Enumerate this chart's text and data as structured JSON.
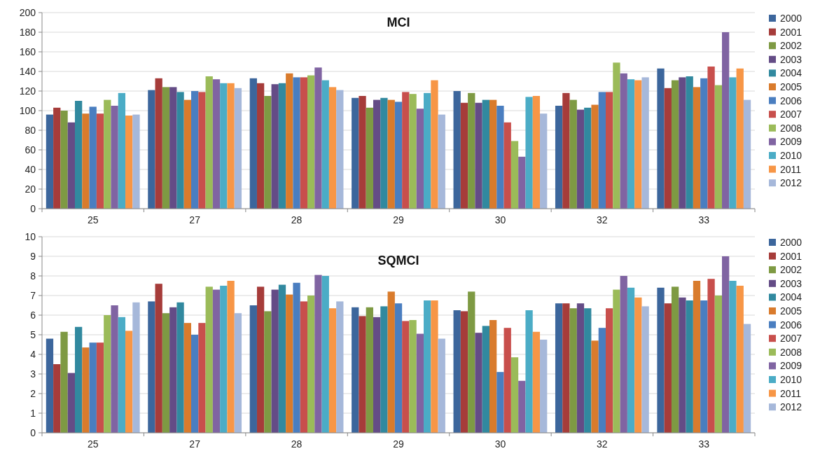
{
  "chart_data": [
    {
      "type": "bar",
      "title": "MCI",
      "categories": [
        "25",
        "27",
        "28",
        "29",
        "30",
        "32",
        "33"
      ],
      "ylim": [
        0,
        200
      ],
      "yticks": [
        0,
        20,
        40,
        60,
        80,
        100,
        120,
        140,
        160,
        180,
        200
      ],
      "grid": "y",
      "legend": "right",
      "series": [
        {
          "name": "2000",
          "color": "#3c669c",
          "values": [
            96,
            121,
            133,
            113,
            120,
            105,
            143
          ]
        },
        {
          "name": "2001",
          "color": "#a63c3a",
          "values": [
            103,
            133,
            128,
            115,
            108,
            118,
            123
          ]
        },
        {
          "name": "2002",
          "color": "#7e9a43",
          "values": [
            100,
            124,
            115,
            103,
            118,
            111,
            131
          ]
        },
        {
          "name": "2003",
          "color": "#644c86",
          "values": [
            88,
            124,
            127,
            111,
            108,
            101,
            134
          ]
        },
        {
          "name": "2004",
          "color": "#31899f",
          "values": [
            110,
            119,
            128,
            113,
            111,
            103,
            135
          ]
        },
        {
          "name": "2005",
          "color": "#d97b2c",
          "values": [
            97,
            111,
            138,
            111,
            111,
            106,
            124
          ]
        },
        {
          "name": "2006",
          "color": "#4a7ec0",
          "values": [
            104,
            120,
            134,
            109,
            105,
            119,
            133
          ]
        },
        {
          "name": "2007",
          "color": "#c84f4c",
          "values": [
            97,
            119,
            134,
            119,
            88,
            119,
            145
          ]
        },
        {
          "name": "2008",
          "color": "#9bbb59",
          "values": [
            111,
            135,
            136,
            117,
            69,
            149,
            126
          ]
        },
        {
          "name": "2009",
          "color": "#8064a2",
          "values": [
            105,
            132,
            144,
            102,
            53,
            138,
            180
          ]
        },
        {
          "name": "2010",
          "color": "#4bacc6",
          "values": [
            118,
            128,
            131,
            118,
            114,
            132,
            134
          ]
        },
        {
          "name": "2011",
          "color": "#f79646",
          "values": [
            95,
            128,
            124,
            131,
            115,
            131,
            143
          ]
        },
        {
          "name": "2012",
          "color": "#a6b8da",
          "values": [
            96,
            123,
            121,
            96,
            97,
            134,
            111
          ]
        }
      ]
    },
    {
      "type": "bar",
      "title": "SQMCI",
      "categories": [
        "25",
        "27",
        "28",
        "29",
        "30",
        "32",
        "33"
      ],
      "ylim": [
        0,
        10
      ],
      "yticks": [
        0,
        1,
        2,
        3,
        4,
        5,
        6,
        7,
        8,
        9,
        10
      ],
      "grid": "y",
      "legend": "right",
      "series": [
        {
          "name": "2000",
          "color": "#3c669c",
          "values": [
            4.8,
            6.7,
            6.5,
            6.4,
            6.25,
            6.6,
            7.4
          ]
        },
        {
          "name": "2001",
          "color": "#a63c3a",
          "values": [
            3.5,
            7.6,
            7.45,
            5.95,
            6.2,
            6.6,
            6.6
          ]
        },
        {
          "name": "2002",
          "color": "#7e9a43",
          "values": [
            5.15,
            6.1,
            6.2,
            6.4,
            7.2,
            6.35,
            7.45
          ]
        },
        {
          "name": "2003",
          "color": "#644c86",
          "values": [
            3.05,
            6.4,
            7.3,
            5.9,
            5.1,
            6.6,
            6.9
          ]
        },
        {
          "name": "2004",
          "color": "#31899f",
          "values": [
            5.4,
            6.65,
            7.55,
            6.45,
            5.45,
            6.35,
            6.75
          ]
        },
        {
          "name": "2005",
          "color": "#d97b2c",
          "values": [
            4.35,
            5.6,
            7.05,
            7.2,
            5.75,
            4.7,
            7.75
          ]
        },
        {
          "name": "2006",
          "color": "#4a7ec0",
          "values": [
            4.6,
            5.0,
            7.65,
            6.6,
            3.1,
            5.35,
            6.75
          ]
        },
        {
          "name": "2007",
          "color": "#c84f4c",
          "values": [
            4.6,
            5.6,
            6.7,
            5.7,
            5.35,
            6.35,
            7.85
          ]
        },
        {
          "name": "2008",
          "color": "#9bbb59",
          "values": [
            6.0,
            7.45,
            7.0,
            5.75,
            3.85,
            7.3,
            7.0
          ]
        },
        {
          "name": "2009",
          "color": "#8064a2",
          "values": [
            6.5,
            7.3,
            8.05,
            5.05,
            2.65,
            8.0,
            9.0
          ]
        },
        {
          "name": "2010",
          "color": "#4bacc6",
          "values": [
            5.9,
            7.5,
            8.0,
            6.75,
            6.25,
            7.4,
            7.75
          ]
        },
        {
          "name": "2011",
          "color": "#f79646",
          "values": [
            5.2,
            7.75,
            6.35,
            6.75,
            5.15,
            6.9,
            7.5
          ]
        },
        {
          "name": "2012",
          "color": "#a6b8da",
          "values": [
            6.65,
            6.1,
            6.7,
            4.8,
            4.75,
            6.45,
            5.55
          ]
        }
      ]
    }
  ]
}
